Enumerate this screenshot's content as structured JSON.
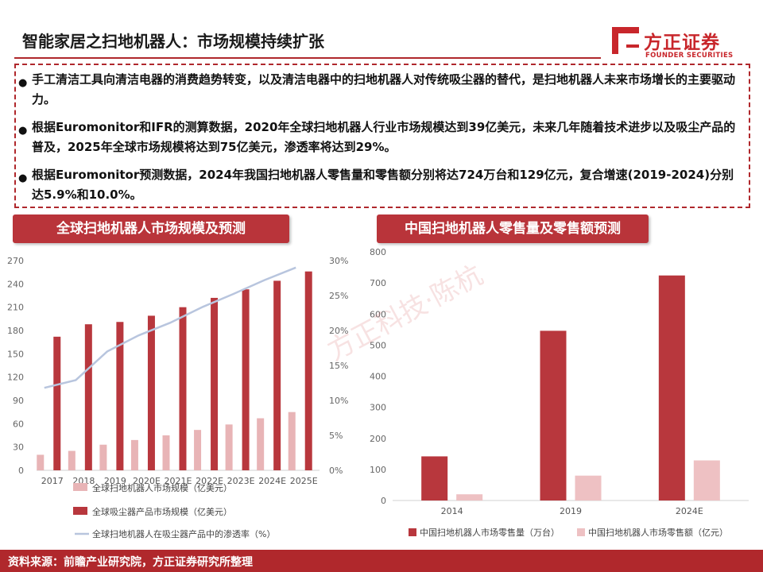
{
  "header": {
    "title": "智能家居之扫地机器人：市场规模持续扩张",
    "brand_name": "方正证券",
    "brand_name_en": "FOUNDER SECURITIES",
    "brand_color": "#c8262b"
  },
  "summary": {
    "bullets": [
      "手工清洁工具向清洁电器的消费趋势转变，以及清洁电器中的扫地机器人对传统吸尘器的替代，是扫地机器人未来市场增长的主要驱动力。",
      "根据Euromonitor和IFR的测算数据，2020年全球扫地机器人行业市场规模达到39亿美元，未来几年随着技术进步以及吸尘产品的普及，2025年全球市场规模将达到75亿美元，渗透率将达到29%。",
      "根据Euromonitor预测数据，2024年我国扫地机器人零售量和零售额分别将达724万台和129亿元，复合增速(2019-2024)分别达5.9%和10.0%。"
    ]
  },
  "watermark": "方正科技·陈杭",
  "footer": {
    "source": "资料来源：前瞻产业研究院，方正证券研究所整理"
  },
  "chart_data": [
    {
      "type": "bar+line",
      "title": "全球扫地机器人市场规模及预测",
      "categories": [
        "2017",
        "2018",
        "2019",
        "2020E",
        "2021E",
        "2022E",
        "2023E",
        "2024E",
        "2025E"
      ],
      "ylim": [
        0,
        270
      ],
      "yticks": [
        0,
        30,
        60,
        90,
        120,
        150,
        180,
        210,
        240,
        270
      ],
      "y2lim": [
        0,
        30
      ],
      "y2ticks": [
        "0%",
        "5%",
        "10%",
        "15%",
        "20%",
        "25%",
        "30%"
      ],
      "series": [
        {
          "name": "全球扫地机器人市场规模（亿美元）",
          "kind": "bar",
          "axis": "left",
          "color": "#e8b4b6",
          "values": [
            20,
            25,
            33,
            39,
            45,
            52,
            59,
            67,
            75
          ]
        },
        {
          "name": "全球吸尘器产品市场规模（亿美元）",
          "kind": "bar",
          "axis": "left",
          "color": "#b8373d",
          "values": [
            172,
            188,
            191,
            199,
            210,
            222,
            233,
            244,
            256
          ]
        },
        {
          "name": "全球扫地机器人在吸尘器产品中的渗透率（%）",
          "kind": "line",
          "axis": "right",
          "color": "#b8c5de",
          "values": [
            11.8,
            12.9,
            17.0,
            19.3,
            21.1,
            23.3,
            25.2,
            27.2,
            29.0
          ]
        }
      ],
      "grid": false,
      "legend": "bottom"
    },
    {
      "type": "bar",
      "title": "中国扫地机器人零售量及零售额预测",
      "categories": [
        "2014",
        "2019",
        "2024E"
      ],
      "ylim": [
        0,
        800
      ],
      "yticks": [
        0,
        100,
        200,
        300,
        400,
        500,
        600,
        700,
        800
      ],
      "series": [
        {
          "name": "中国扫地机器人市场零售量（万台）",
          "color": "#b8373d",
          "values": [
            142,
            546,
            724
          ]
        },
        {
          "name": "中国扫地机器人市场零售额（亿元）",
          "color": "#eec1c3",
          "values": [
            20,
            80,
            129
          ]
        }
      ],
      "grid": false,
      "legend": "bottom"
    }
  ]
}
